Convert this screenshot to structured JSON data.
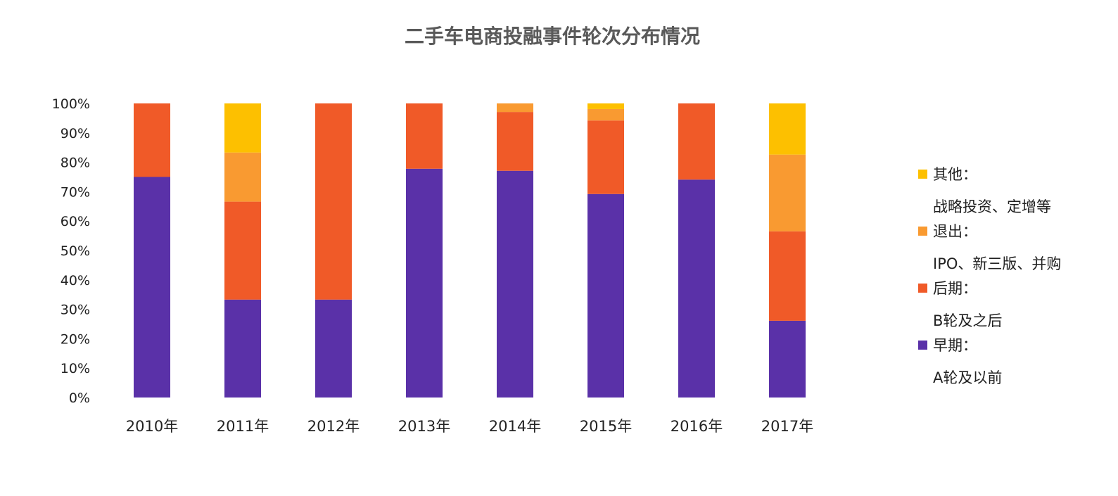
{
  "chart_data": {
    "type": "bar",
    "stacked": true,
    "title": "二手车电商投融事件轮次分布情况",
    "categories": [
      "2010年",
      "2011年",
      "2012年",
      "2013年",
      "2014年",
      "2015年",
      "2016年",
      "2017年"
    ],
    "ylim": [
      0,
      100
    ],
    "yticks": [
      "0%",
      "10%",
      "20%",
      "30%",
      "40%",
      "50%",
      "60%",
      "70%",
      "80%",
      "90%",
      "100%"
    ],
    "grid": false,
    "legend_position": "right",
    "series": [
      {
        "name": "早期：",
        "sub": "A轮及以前",
        "color": "#5a31a8",
        "values": [
          75,
          33.3,
          33.3,
          77.8,
          77.1,
          69.2,
          74.1,
          26.1
        ]
      },
      {
        "name": "后期：",
        "sub": "B轮及之后",
        "color": "#f05a28",
        "values": [
          25,
          33.3,
          66.7,
          22.2,
          20,
          25,
          25.9,
          30.4
        ]
      },
      {
        "name": "退出：",
        "sub": "IPO、新三版、并购",
        "color": "#f99a31",
        "values": [
          0,
          16.7,
          0,
          0,
          2.9,
          3.9,
          0,
          26.1
        ]
      },
      {
        "name": "其他：",
        "sub": "战略投资、定增等",
        "color": "#fdc000",
        "values": [
          0,
          16.7,
          0,
          0,
          0,
          1.9,
          0,
          17.4
        ]
      }
    ]
  }
}
